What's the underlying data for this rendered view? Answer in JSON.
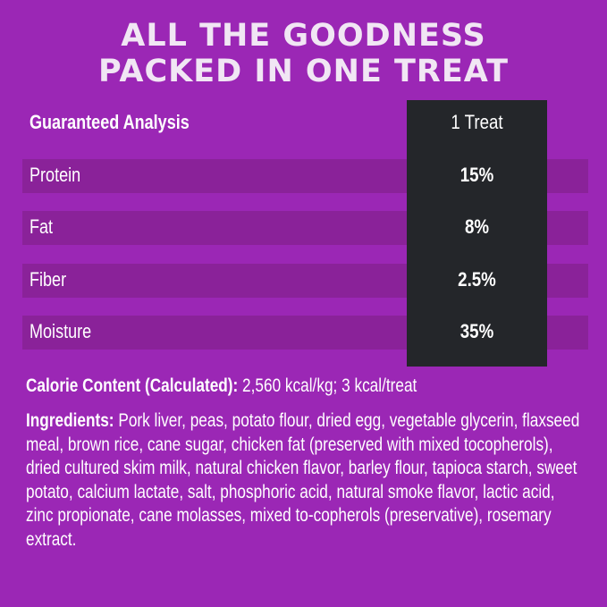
{
  "title_line1": "ALL THE GOODNESS",
  "title_line2": "PACKED IN ONE TREAT",
  "table": {
    "header_label": "Guaranteed Analysis",
    "header_value": "1 Treat",
    "rows": [
      {
        "label": "Protein",
        "value": "15%"
      },
      {
        "label": "Fat",
        "value": "8%"
      },
      {
        "label": "Fiber",
        "value": "2.5%"
      },
      {
        "label": "Moisture",
        "value": "35%"
      }
    ]
  },
  "calorie": {
    "label": "Calorie Content (Calculated):",
    "value": " 2,560 kcal/kg; 3 kcal/treat"
  },
  "ingredients": {
    "label": "Ingredients:",
    "value": " Pork liver, peas, potato flour, dried egg, vegetable glycerin, flaxseed meal, brown rice, cane sugar, chicken fat (preserved with mixed tocopherols), dried cultured skim milk, natural chicken flavor, barley flour, tapioca starch, sweet potato, calcium lactate, salt, phosphoric acid, natural smoke flavor, lactic acid, zinc propionate, cane molasses, mixed to-copherols (preservative), rosemary extract."
  },
  "colors": {
    "background": "#9b27b5",
    "stripe": "#8a2299",
    "value_column": "#24262a",
    "title": "#f1e6f4"
  }
}
